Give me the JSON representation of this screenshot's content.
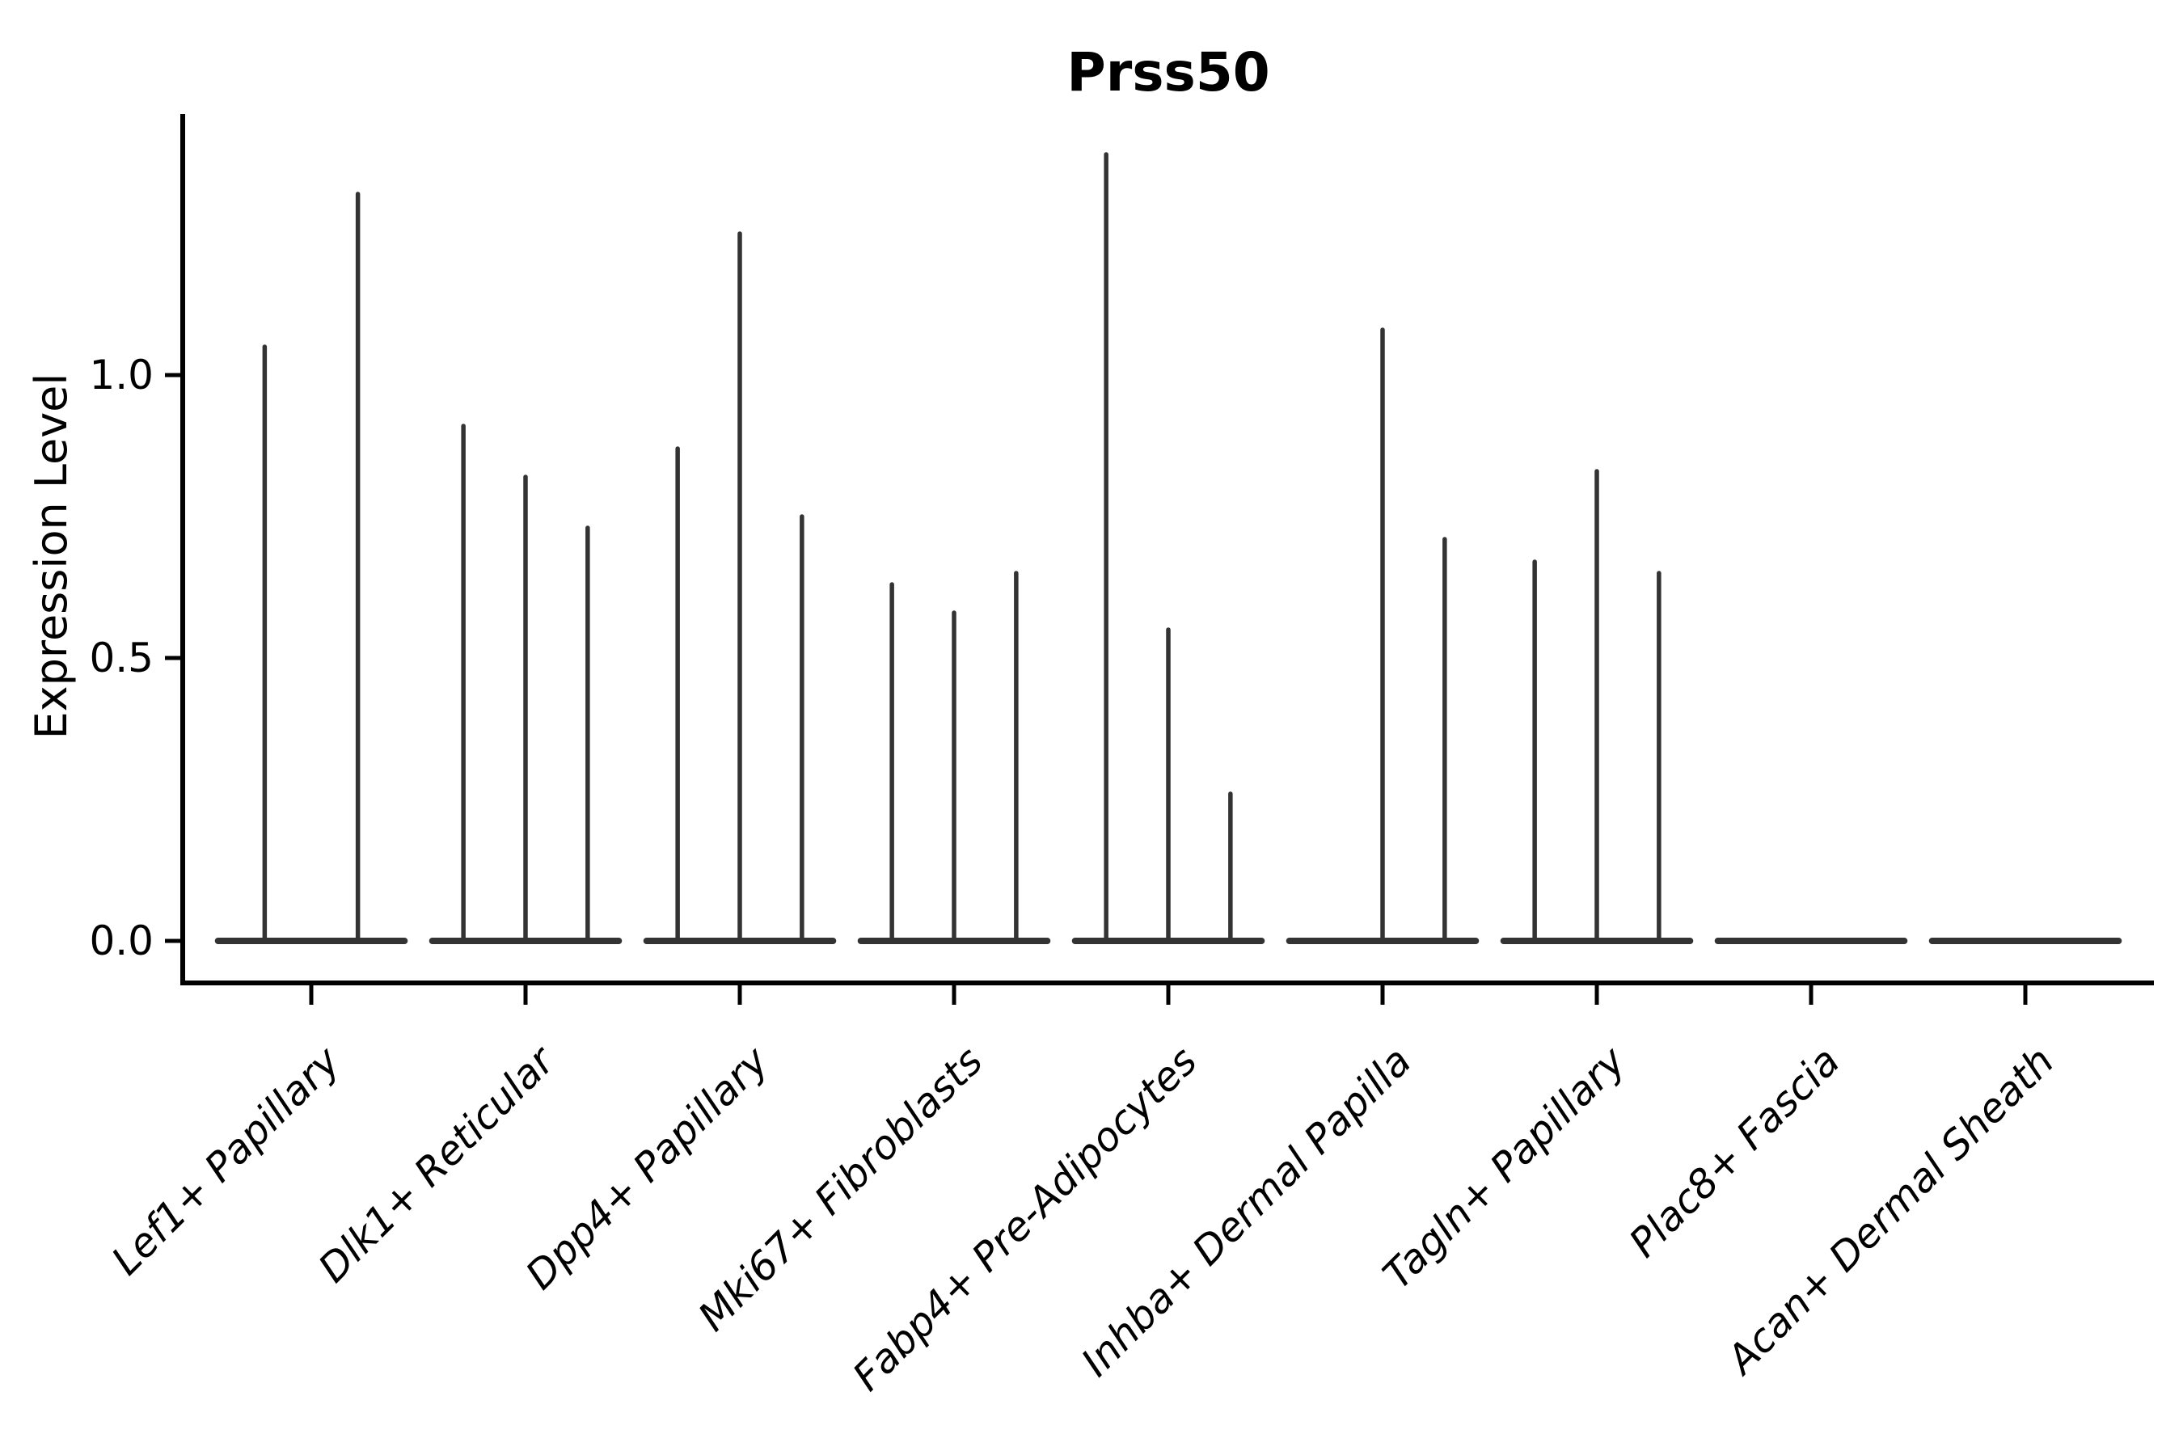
{
  "figure": {
    "background_color": "#ffffff",
    "axis_color": "#000000",
    "violin_color": "#333333"
  },
  "chart_data": {
    "type": "violin",
    "title": "Prss50",
    "xlabel": "",
    "ylabel": "Expression Level",
    "ylim": [
      -0.07,
      1.46
    ],
    "yticks": [
      0.0,
      0.5,
      1.0
    ],
    "ytick_labels": [
      "0.0",
      "0.5",
      "1.0"
    ],
    "grid": false,
    "legend": "none",
    "x_label_rotation_deg": 45,
    "x_label_style": "italic",
    "categories": [
      "Lef1+ Papillary",
      "Dlk1+ Reticular",
      "Dpp4+ Papillary",
      "Mki67+ Fibroblasts",
      "Fabp4+ Pre-Adipocytes",
      "Inhba+ Dermal Papilla",
      "Tagln+ Papillary",
      "Plac8+ Fascia",
      "Acan+ Dermal Sheath"
    ],
    "series": [
      {
        "category": "Lef1+ Papillary",
        "violin_max_values": [
          1.05,
          1.32
        ]
      },
      {
        "category": "Dlk1+ Reticular",
        "violin_max_values": [
          0.91,
          0.82,
          0.73
        ]
      },
      {
        "category": "Dpp4+ Papillary",
        "violin_max_values": [
          0.87,
          1.25,
          0.75
        ]
      },
      {
        "category": "Mki67+ Fibroblasts",
        "violin_max_values": [
          0.63,
          0.58,
          0.65
        ]
      },
      {
        "category": "Fabp4+ Pre-Adipocytes",
        "violin_max_values": [
          1.39,
          0.55,
          0.26
        ]
      },
      {
        "category": "Inhba+ Dermal Papilla",
        "violin_max_values": [
          0.0,
          1.08,
          0.71
        ]
      },
      {
        "category": "Tagln+ Papillary",
        "violin_max_values": [
          0.67,
          0.83,
          0.65
        ]
      },
      {
        "category": "Plac8+ Fascia",
        "violin_max_values": [
          0.0,
          0.0,
          0.0
        ]
      },
      {
        "category": "Acan+ Dermal Sheath",
        "violin_max_values": [
          0.0,
          0.0,
          0.0
        ]
      }
    ],
    "description": "Each category shows thin spike violins: most expression mass at 0 (flat baseline) with narrow spikes up to the per-group maximum expression level."
  }
}
